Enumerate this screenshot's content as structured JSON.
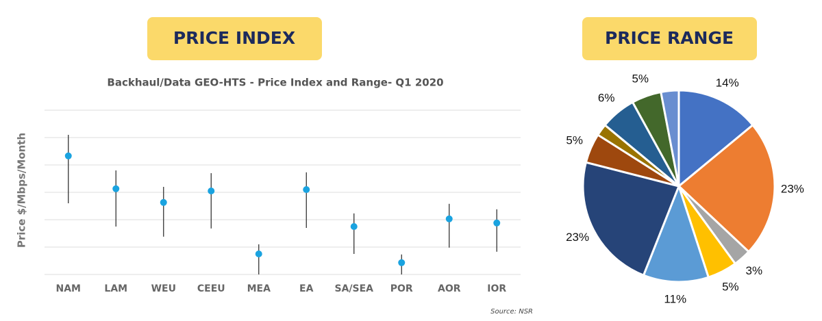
{
  "headers": [
    "PRICE INDEX",
    "PRICE RANGE"
  ],
  "chart_data": [
    {
      "type": "range",
      "title": "Backhaul/Data GEO-HTS - Price Index and Range- Q1 2020",
      "y_label": "Price $/Mbps/Month",
      "source": "Source: NSR",
      "categories": [
        "NAM",
        "LAM",
        "WEU",
        "CEEU",
        "MEA",
        "EA",
        "SA/SEA",
        "POR",
        "AOR",
        "IOR"
      ],
      "values": [
        4.33,
        3.13,
        2.63,
        3.05,
        0.75,
        3.1,
        1.75,
        0.43,
        2.03,
        1.88
      ],
      "low": [
        2.6,
        1.75,
        1.38,
        1.68,
        0,
        1.7,
        0.75,
        0,
        0.98,
        0.83
      ],
      "high": [
        5.1,
        3.8,
        3.2,
        3.7,
        1.1,
        3.73,
        2.23,
        0.73,
        2.58,
        2.38
      ],
      "color": "#1aa3e0",
      "range_color": "#333333",
      "ylim": [
        0,
        6
      ],
      "grid_y": [
        0,
        1,
        2,
        3,
        4,
        5,
        6
      ]
    },
    {
      "type": "pie",
      "values": [
        14,
        23,
        3,
        5,
        11,
        23,
        5,
        2,
        6,
        5,
        3
      ],
      "value_labels": [
        "14%",
        "23%",
        "3%",
        "5%",
        "11%",
        "23%",
        "5%",
        null,
        "6%",
        "5%",
        null
      ],
      "colors": [
        "#4472c4",
        "#ed7d31",
        "#a5a5a5",
        "#ffc000",
        "#5b9bd5",
        "#264478",
        "#9e480e",
        "#997300",
        "#255e91",
        "#43682b",
        "#698ed0"
      ]
    }
  ]
}
